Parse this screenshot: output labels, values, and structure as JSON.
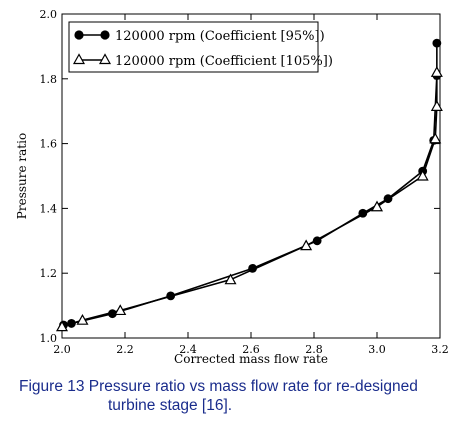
{
  "chart_data": {
    "type": "line",
    "xlabel": "Corrected mass flow rate",
    "ylabel": "Pressure ratio",
    "xlim": [
      2.0,
      3.2
    ],
    "ylim": [
      1.0,
      2.0
    ],
    "xticks": [
      "2.0",
      "2.2",
      "2.4",
      "2.6",
      "2.8",
      "3.0",
      "3.2"
    ],
    "yticks": [
      "1.0",
      "1.2",
      "1.4",
      "1.6",
      "1.8",
      "2.0"
    ],
    "grid": false,
    "legend_position": "top-left",
    "series": [
      {
        "name": "120000 rpm (Coefficient [95%])",
        "marker": "circle",
        "color": "#000000",
        "x": [
          2.005,
          2.03,
          2.16,
          2.345,
          2.605,
          2.81,
          2.955,
          3.035,
          3.145,
          3.18,
          3.19,
          3.19
        ],
        "y": [
          1.04,
          1.045,
          1.075,
          1.13,
          1.215,
          1.3,
          1.385,
          1.43,
          1.515,
          1.61,
          1.81,
          1.91
        ]
      },
      {
        "name": "120000 rpm (Coefficient [105%])",
        "marker": "triangle",
        "color": "#000000",
        "x": [
          2.0,
          2.065,
          2.185,
          2.535,
          2.775,
          3.0,
          3.145,
          3.185,
          3.19,
          3.19
        ],
        "y": [
          1.035,
          1.055,
          1.085,
          1.18,
          1.285,
          1.405,
          1.5,
          1.615,
          1.715,
          1.82
        ]
      }
    ]
  },
  "caption": {
    "line1": "Figure 13  Pressure ratio vs mass flow rate for re-designed",
    "line2": "turbine stage [16]."
  }
}
